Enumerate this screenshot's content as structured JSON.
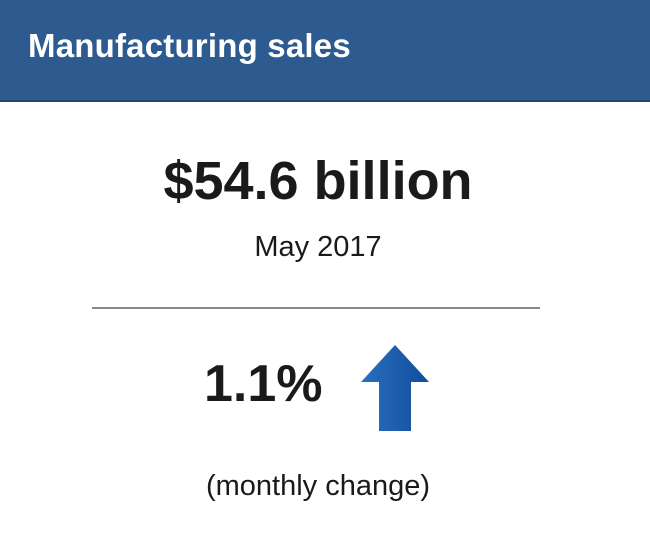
{
  "header": {
    "title": "Manufacturing sales"
  },
  "main": {
    "value": "$54.6 billion",
    "period": "May 2017"
  },
  "change": {
    "value": "1.1%",
    "note": "(monthly change)"
  }
}
